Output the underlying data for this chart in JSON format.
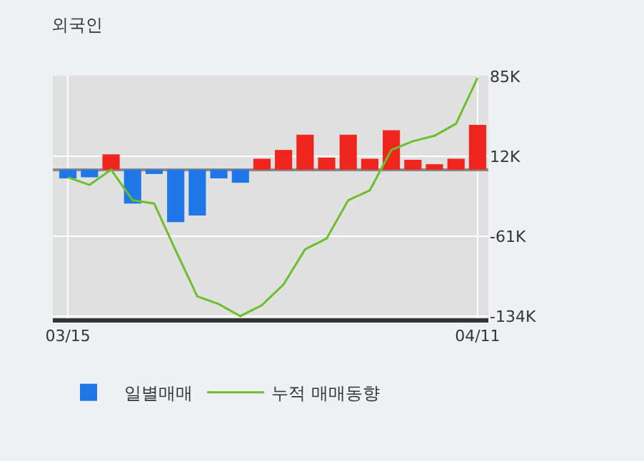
{
  "chart_data": {
    "type": "bar",
    "title": "외국인",
    "categories": [
      "03/15",
      null,
      null,
      null,
      null,
      null,
      null,
      null,
      null,
      null,
      null,
      null,
      null,
      null,
      null,
      null,
      null,
      null,
      null,
      "04/11"
    ],
    "series": [
      {
        "name": "일별매매",
        "colors": [
          "#1f77e8",
          "#1f77e8",
          "#f0261e",
          "#1f77e8",
          "#1f77e8",
          "#1f77e8",
          "#1f77e8",
          "#1f77e8",
          "#1f77e8",
          "#f0261e",
          "#f0261e",
          "#f0261e",
          "#f0261e",
          "#f0261e",
          "#f0261e",
          "#f0261e",
          "#f0261e",
          "#f0261e",
          "#f0261e",
          "#f0261e"
        ],
        "values": [
          -8000,
          -7000,
          14000,
          -31000,
          -4000,
          -48000,
          -42000,
          -8000,
          -12000,
          10000,
          18000,
          32000,
          11000,
          32000,
          10000,
          36000,
          9000,
          5000,
          10000,
          41000
        ]
      },
      {
        "name": "누적 매매동향",
        "type": "line",
        "color": "#6abf2a",
        "values": [
          -7000,
          -14000,
          0,
          -28000,
          -31000,
          -74000,
          -116000,
          -123000,
          -134000,
          -124000,
          -105000,
          -73000,
          -63000,
          -28000,
          -19000,
          18000,
          26000,
          31000,
          42000,
          84000
        ]
      }
    ],
    "ylim": [
      -136000,
      86000
    ],
    "yticks": [
      {
        "value": 85000,
        "label": "85K"
      },
      {
        "value": 12000,
        "label": "12K"
      },
      {
        "value": -61000,
        "label": "-61K"
      },
      {
        "value": -134000,
        "label": "-134K"
      }
    ],
    "grid": true,
    "legend": "bottom",
    "marker": "none",
    "line_style": "solid"
  }
}
